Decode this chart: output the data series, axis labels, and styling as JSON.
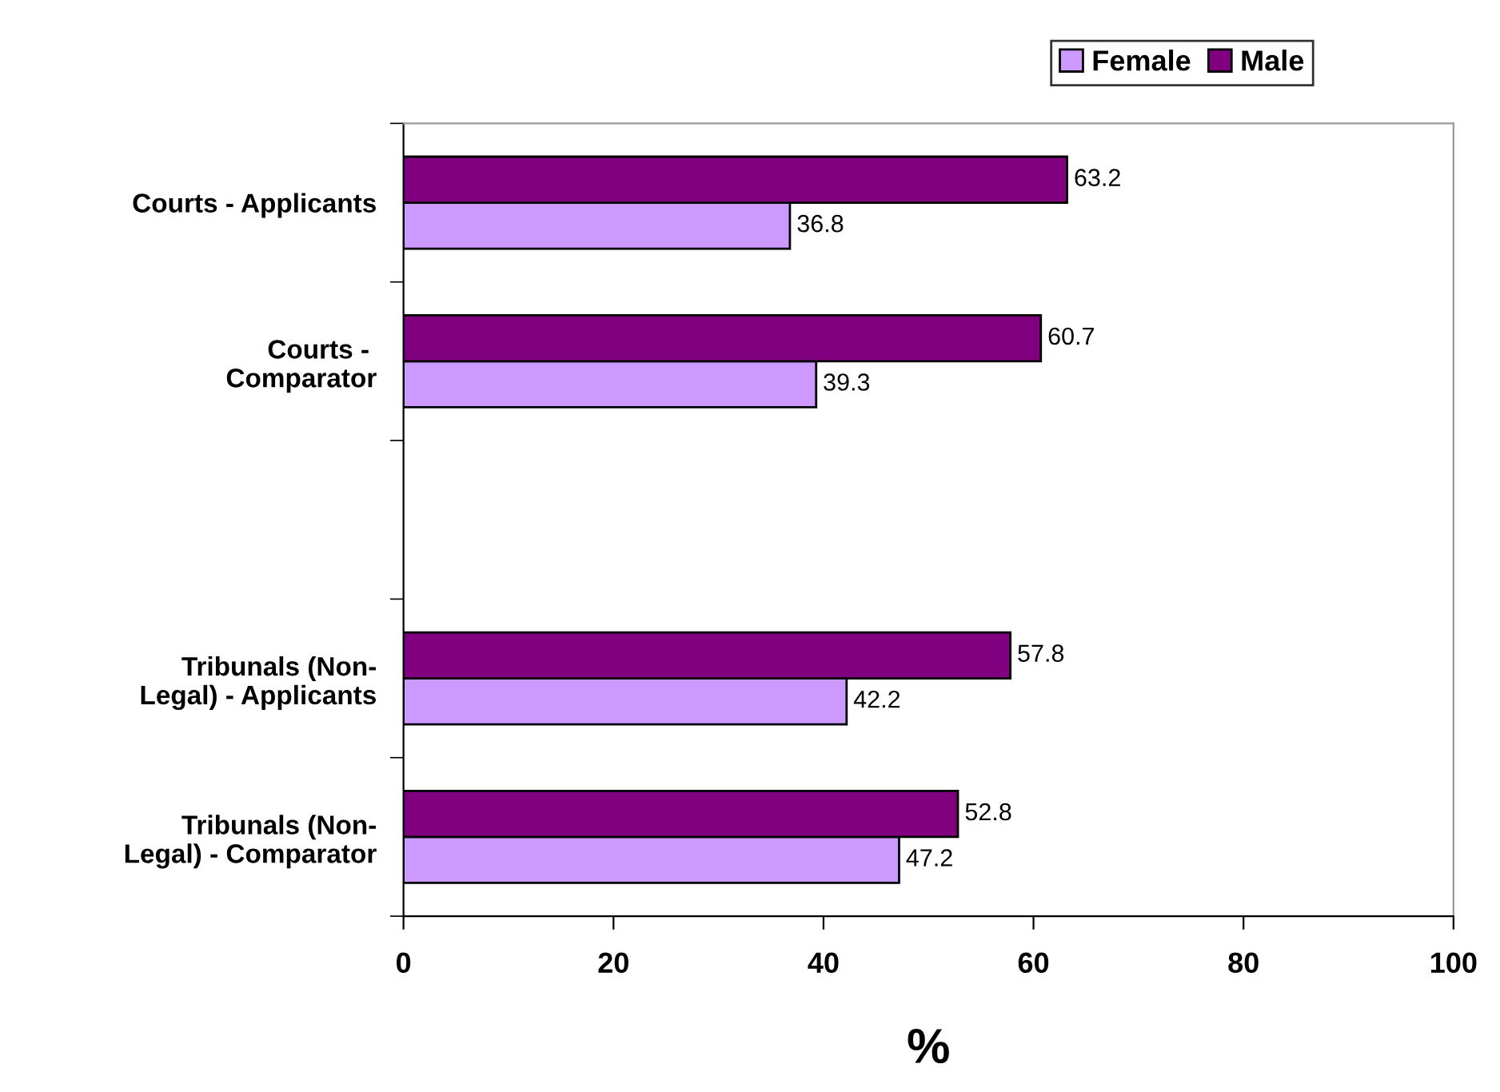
{
  "chart_data": {
    "type": "bar",
    "orientation": "horizontal",
    "xlabel": "%",
    "categories": [
      "Courts - Applicants",
      "Courts - \nComparator",
      null,
      "Tribunals (Non-\nLegal) - Applicants",
      "Tribunals (Non-\nLegal) - Comparator"
    ],
    "series": [
      {
        "name": "Female",
        "color": "#cc99ff",
        "values": [
          36.8,
          39.3,
          null,
          42.2,
          47.2
        ]
      },
      {
        "name": "Male",
        "color": "#800080",
        "values": [
          63.2,
          60.7,
          null,
          57.8,
          52.8
        ]
      }
    ],
    "xlim": [
      0,
      100
    ],
    "xticks": [
      0,
      20,
      40,
      60,
      80,
      100
    ],
    "data_labels": true,
    "legend": "top right",
    "grid": false
  }
}
